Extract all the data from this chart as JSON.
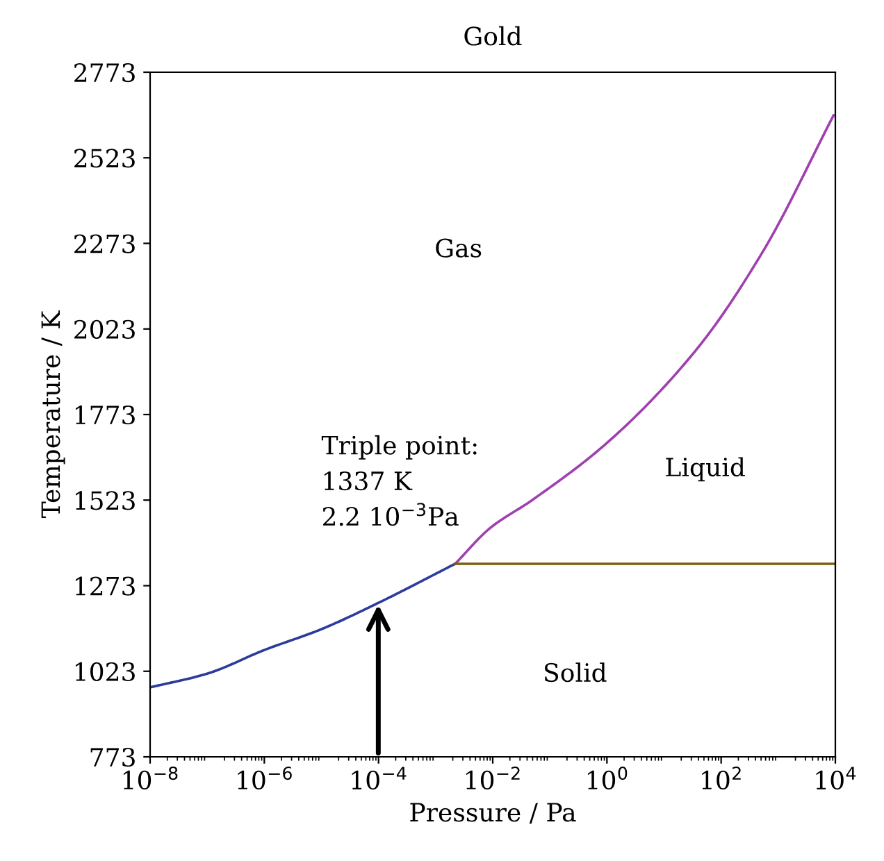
{
  "chart_data": {
    "type": "line",
    "title": "Gold",
    "xlabel": "Pressure / Pa",
    "ylabel": "Temperature / K",
    "log": "x",
    "series": [
      {
        "color": "#2b3c9c",
        "x": [
          1e-08,
          1e-07,
          1e-06,
          1e-05,
          0.0001,
          0.0022
        ],
        "values": [
          976,
          1016,
          1085,
          1146,
          1223,
          1337
        ]
      },
      {
        "color": "#a040b0",
        "x": [
          0.0022,
          0.0091,
          0.049,
          1,
          35,
          560,
          9300
        ],
        "values": [
          1337,
          1442,
          1523,
          1690,
          1958,
          2254,
          2647
        ]
      },
      {
        "color": "#7a6010",
        "x": [
          0.0022,
          10000
        ],
        "values": [
          1337,
          1337
        ]
      }
    ],
    "xlim": [
      1e-08,
      10000
    ],
    "ylim": [
      773,
      2773
    ],
    "xticks": [
      {
        "value": 1e-08,
        "label": "10$^{−8}$"
      },
      {
        "value": 1e-06,
        "label": "10$^{−6}$"
      },
      {
        "value": 0.0001,
        "label": "10$^{−4}$"
      },
      {
        "value": 0.01,
        "label": "10$^{−2}$"
      },
      {
        "value": 1,
        "label": "10$^{0}$"
      },
      {
        "value": 100,
        "label": "10$^{2}$"
      },
      {
        "value": 10000,
        "label": "10$^{4}$"
      }
    ],
    "yticks": [
      773,
      1023,
      1273,
      1523,
      1773,
      2023,
      2273,
      2523,
      2773
    ],
    "grid": false,
    "marker": "none",
    "line_style": "solid",
    "annotations": [
      "Gas",
      "Liquid",
      "Solid",
      "Triple point:\n1337 K\n2.2 10$^{−3}$Pa"
    ]
  }
}
